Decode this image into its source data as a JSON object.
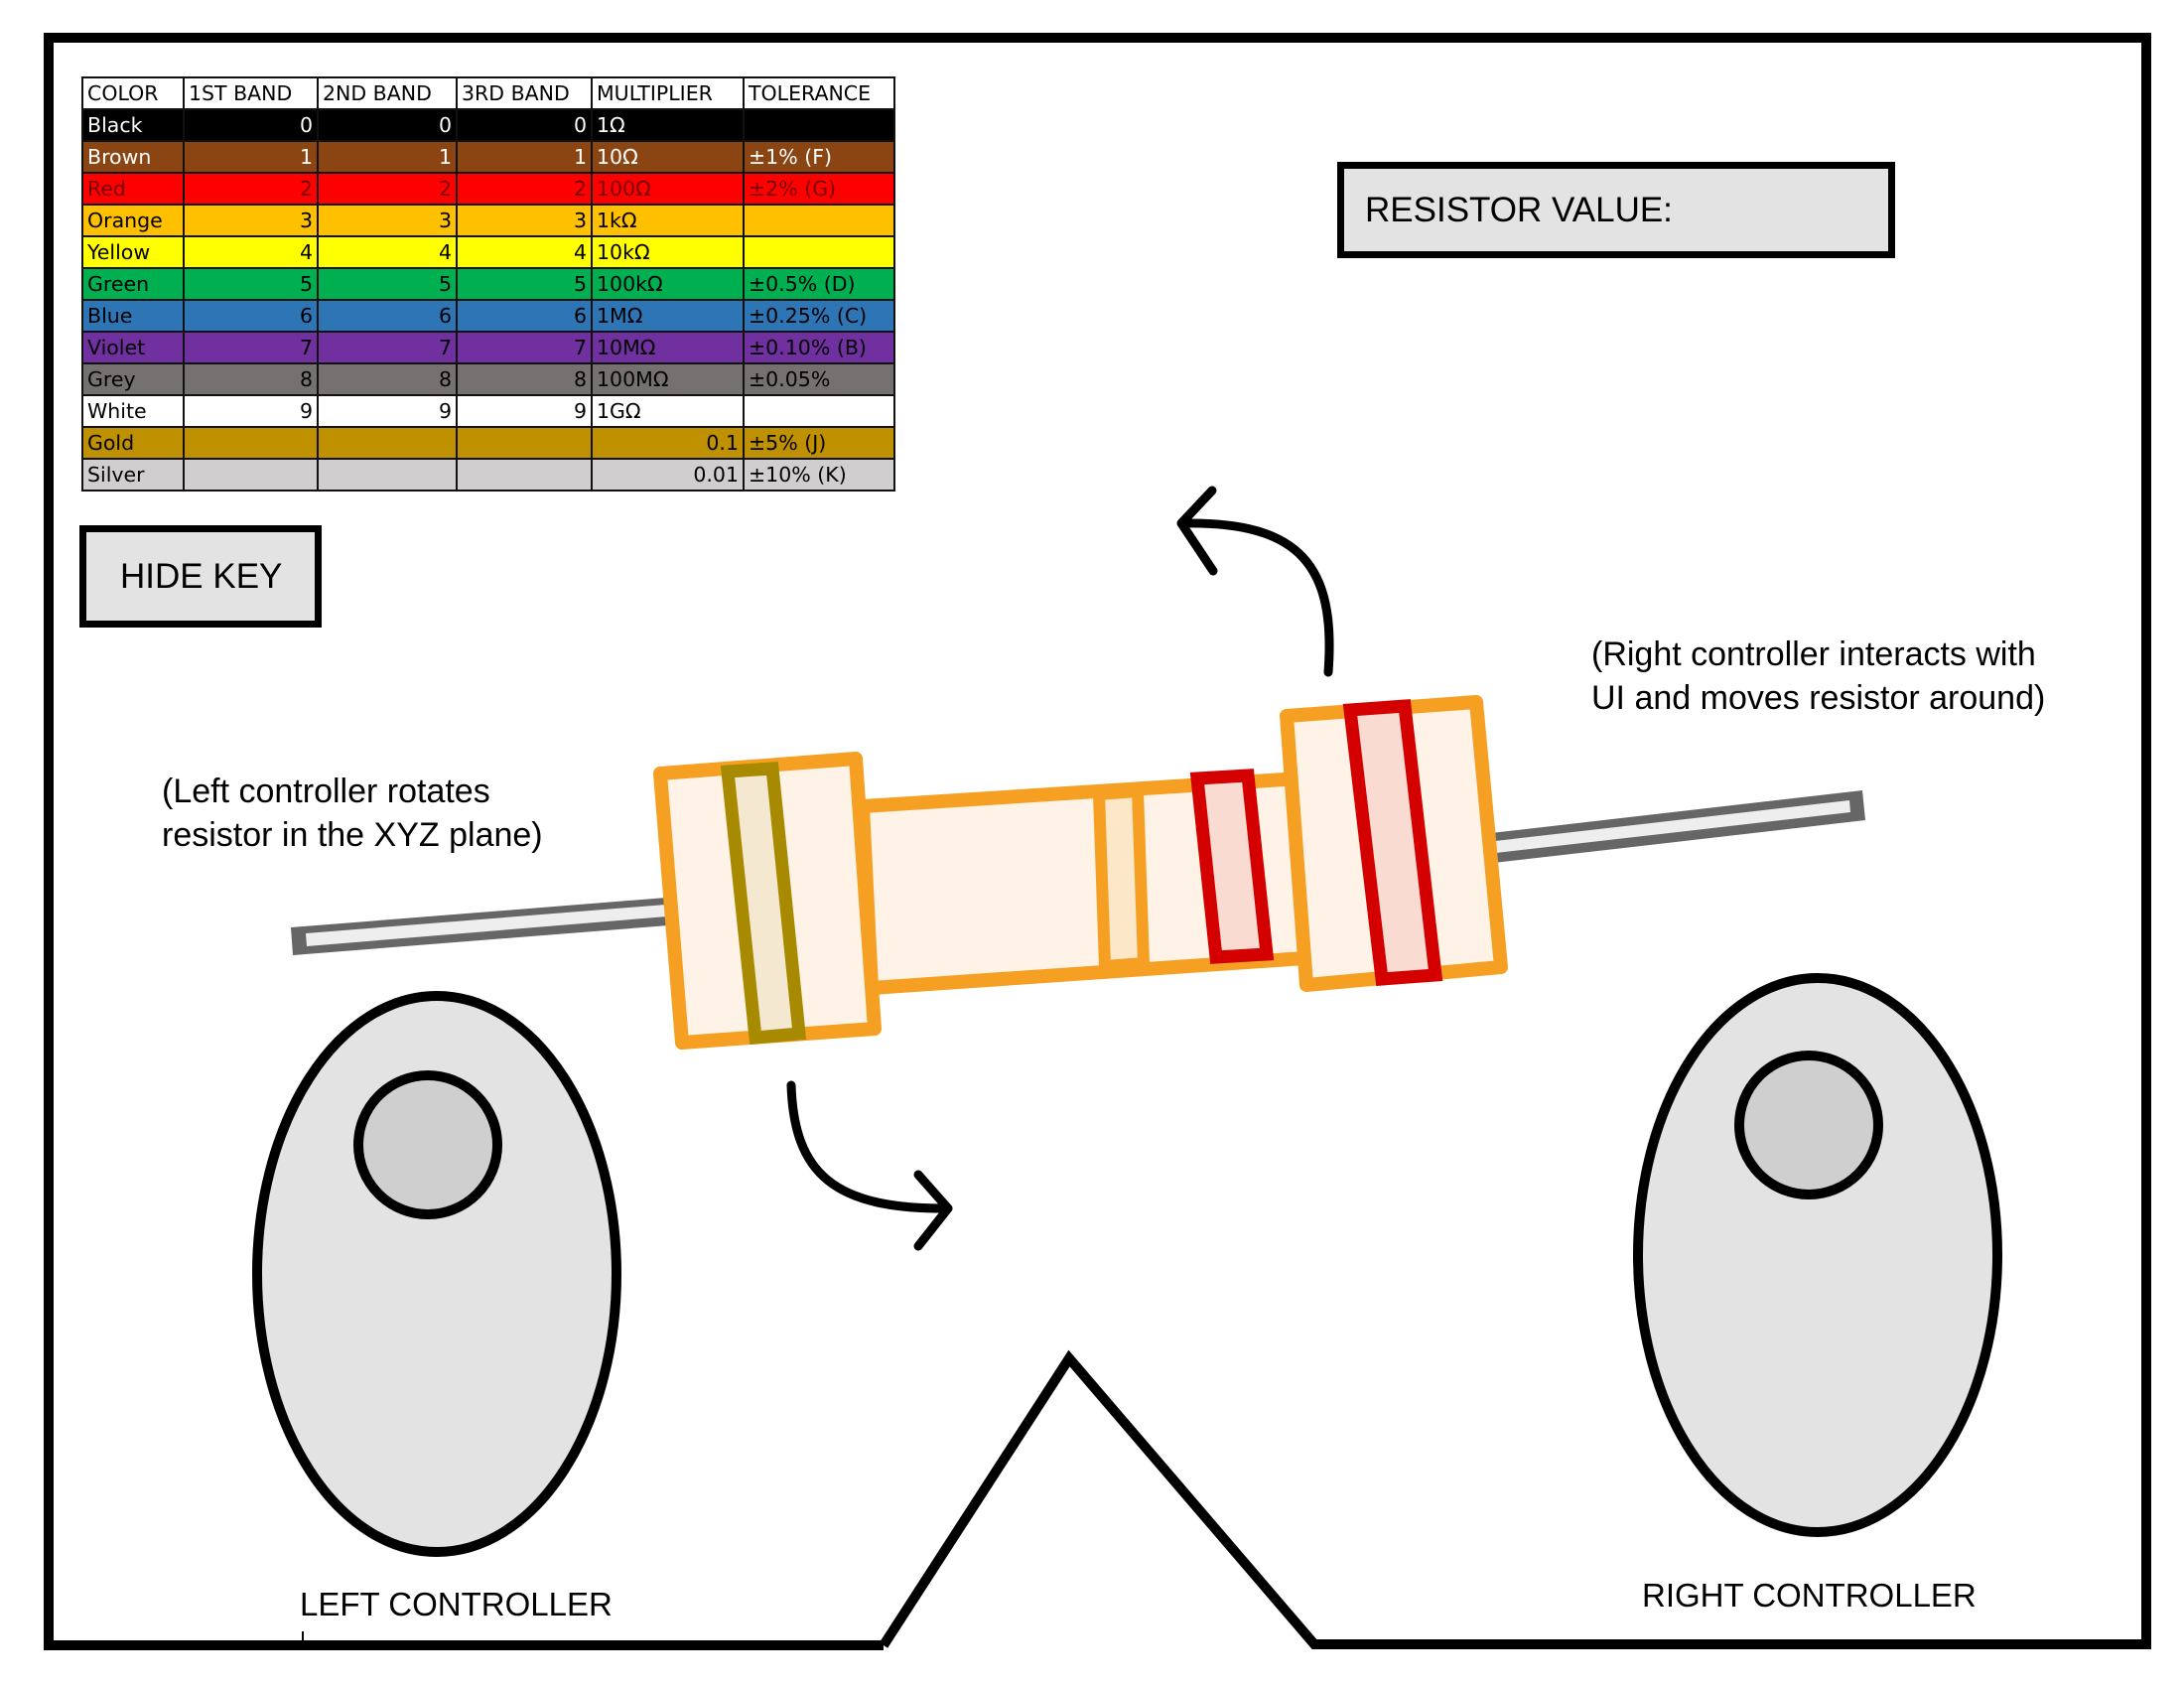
{
  "key_table": {
    "headers": [
      "COLOR",
      "1ST BAND",
      "2ND BAND",
      "3RD BAND",
      "MULTIPLIER",
      "TOLERANCE"
    ],
    "rows": [
      {
        "color": "Black",
        "b1": "0",
        "b2": "0",
        "b3": "0",
        "multiplier": "1Ω",
        "tolerance": "",
        "bg": "#000000",
        "fg": "#ffffff"
      },
      {
        "color": "Brown",
        "b1": "1",
        "b2": "1",
        "b3": "1",
        "multiplier": "10Ω",
        "tolerance": "±1% (F)",
        "bg": "#8B4513",
        "fg": "#ffffff"
      },
      {
        "color": "Red",
        "b1": "2",
        "b2": "2",
        "b3": "2",
        "multiplier": "100Ω",
        "tolerance": "±2% (G)",
        "bg": "#FF0000",
        "fg": "#7a0000"
      },
      {
        "color": "Orange",
        "b1": "3",
        "b2": "3",
        "b3": "3",
        "multiplier": "1kΩ",
        "tolerance": "",
        "bg": "#FFC000",
        "fg": "#000000"
      },
      {
        "color": "Yellow",
        "b1": "4",
        "b2": "4",
        "b3": "4",
        "multiplier": "10kΩ",
        "tolerance": "",
        "bg": "#FFFF00",
        "fg": "#000000"
      },
      {
        "color": "Green",
        "b1": "5",
        "b2": "5",
        "b3": "5",
        "multiplier": "100kΩ",
        "tolerance": "±0.5% (D)",
        "bg": "#00B050",
        "fg": "#000000"
      },
      {
        "color": "Blue",
        "b1": "6",
        "b2": "6",
        "b3": "6",
        "multiplier": "1MΩ",
        "tolerance": "±0.25% (C)",
        "bg": "#2E75B6",
        "fg": "#000000"
      },
      {
        "color": "Violet",
        "b1": "7",
        "b2": "7",
        "b3": "7",
        "multiplier": "10MΩ",
        "tolerance": "±0.10% (B)",
        "bg": "#7030A0",
        "fg": "#000000"
      },
      {
        "color": "Grey",
        "b1": "8",
        "b2": "8",
        "b3": "8",
        "multiplier": "100MΩ",
        "tolerance": "±0.05%",
        "bg": "#767171",
        "fg": "#000000"
      },
      {
        "color": "White",
        "b1": "9",
        "b2": "9",
        "b3": "9",
        "multiplier": "1GΩ",
        "tolerance": "",
        "bg": "#ffffff",
        "fg": "#000000"
      },
      {
        "color": "Gold",
        "b1": "",
        "b2": "",
        "b3": "",
        "multiplier": "0.1",
        "tolerance": "±5% (J)",
        "bg": "#BF9000",
        "fg": "#000000"
      },
      {
        "color": "Silver",
        "b1": "",
        "b2": "",
        "b3": "",
        "multiplier": "0.01",
        "tolerance": "±10% (K)",
        "bg": "#D0CECE",
        "fg": "#000000"
      }
    ]
  },
  "buttons": {
    "hide_key": "HIDE KEY",
    "resistor_value": "RESISTOR VALUE:"
  },
  "notes": {
    "left_line1": "(Left controller rotates",
    "left_line2": "resistor in the XYZ plane)",
    "right_line1": "(Right controller interacts with",
    "right_line2": "UI and moves resistor around)"
  },
  "controllers": {
    "left_label": "LEFT CONTROLLER",
    "right_label": "RIGHT CONTROLLER"
  },
  "colors": {
    "resistor_body": "#F5A023",
    "resistor_fill": "#FEF3E6",
    "band_gold": "#A88A00",
    "band_red": "#D40000",
    "lead": "#666666",
    "controller_fill": "#E3E3E3"
  }
}
